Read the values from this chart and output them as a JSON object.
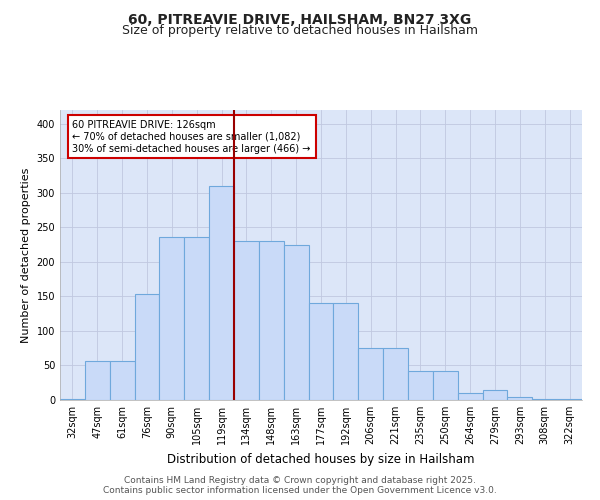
{
  "title": "60, PITREAVIE DRIVE, HAILSHAM, BN27 3XG",
  "subtitle": "Size of property relative to detached houses in Hailsham",
  "xlabel": "Distribution of detached houses by size in Hailsham",
  "ylabel": "Number of detached properties",
  "bar_labels": [
    "32sqm",
    "47sqm",
    "61sqm",
    "76sqm",
    "90sqm",
    "105sqm",
    "119sqm",
    "134sqm",
    "148sqm",
    "163sqm",
    "177sqm",
    "192sqm",
    "206sqm",
    "221sqm",
    "235sqm",
    "250sqm",
    "264sqm",
    "279sqm",
    "293sqm",
    "308sqm",
    "322sqm"
  ],
  "bar_values": [
    2,
    57,
    57,
    154,
    236,
    236,
    310,
    230,
    230,
    225,
    140,
    140,
    76,
    76,
    42,
    42,
    10,
    15,
    5,
    2,
    2
  ],
  "bar_color": "#c9daf8",
  "bar_edge_color": "#6fa8dc",
  "vline_color": "#990000",
  "annotation_text": "60 PITREAVIE DRIVE: 126sqm\n← 70% of detached houses are smaller (1,082)\n30% of semi-detached houses are larger (466) →",
  "annotation_box_color": "#ffffff",
  "annotation_box_edge": "#cc0000",
  "ylim": [
    0,
    420
  ],
  "yticks": [
    0,
    50,
    100,
    150,
    200,
    250,
    300,
    350,
    400
  ],
  "footer": "Contains HM Land Registry data © Crown copyright and database right 2025.\nContains public sector information licensed under the Open Government Licence v3.0.",
  "bg_color": "#dce6f8",
  "title_fontsize": 10,
  "subtitle_fontsize": 9,
  "xlabel_fontsize": 8.5,
  "ylabel_fontsize": 8,
  "tick_fontsize": 7,
  "footer_fontsize": 6.5
}
